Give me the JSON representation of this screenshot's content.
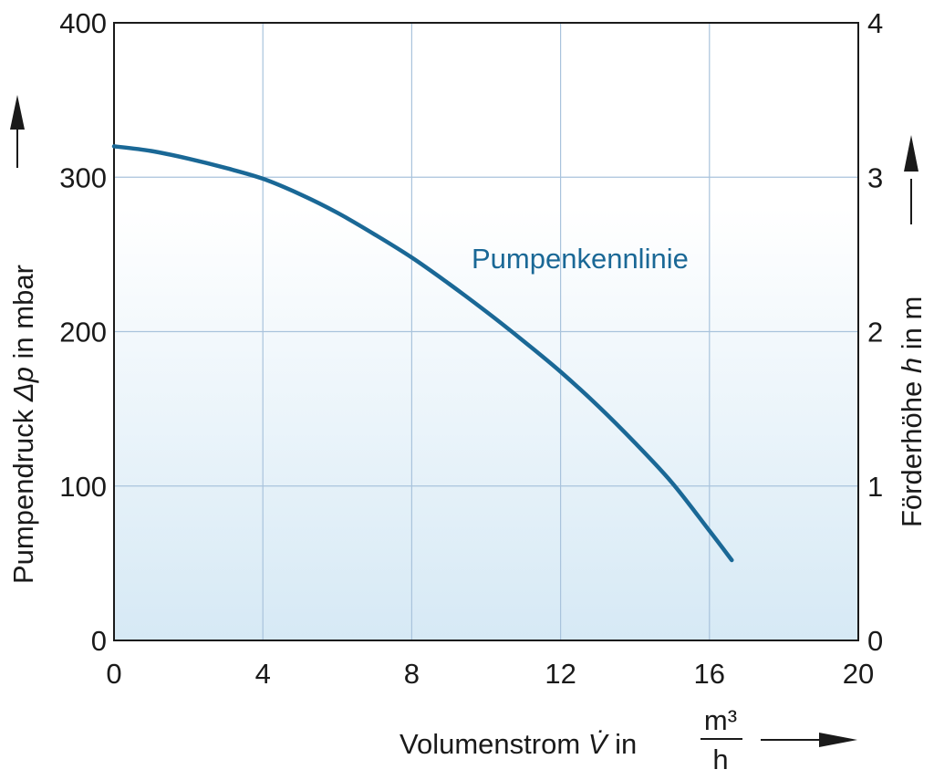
{
  "chart_data": {
    "type": "line",
    "x": [
      0,
      1,
      2,
      3,
      4,
      5,
      6,
      7,
      8,
      9,
      10,
      11,
      12,
      13,
      14,
      15,
      16,
      16.6
    ],
    "y": [
      320,
      317,
      312,
      306,
      299,
      289,
      277,
      263,
      248,
      231,
      213,
      194,
      174,
      152,
      128,
      102,
      71,
      52
    ],
    "series": [
      {
        "name": "Pumpenkennlinie",
        "color": "#1a6896"
      }
    ],
    "xlim": [
      0,
      20
    ],
    "ylim": [
      0,
      400
    ],
    "y2lim": [
      0,
      4
    ],
    "x_ticks": [
      "0",
      "4",
      "8",
      "12",
      "16",
      "20"
    ],
    "y_ticks": [
      "0",
      "100",
      "200",
      "300",
      "400"
    ],
    "y2_ticks": [
      "0",
      "1",
      "2",
      "3",
      "4"
    ],
    "xlabel": {
      "prefix": "Volumenstrom ",
      "symbol": "V̇",
      "mid": " in ",
      "unit_numerator": "m³",
      "unit_denominator": "h"
    },
    "ylabel": {
      "prefix": "Pumpendruck ",
      "symbol": "Δp",
      "suffix": " in mbar"
    },
    "y2label": {
      "prefix": "Förderhöhe ",
      "symbol": "h",
      "suffix": " in m"
    },
    "grid": true,
    "background_gradient": [
      "#ffffff",
      "#d6e9f5"
    ],
    "grid_color": "#a9c3dc"
  }
}
